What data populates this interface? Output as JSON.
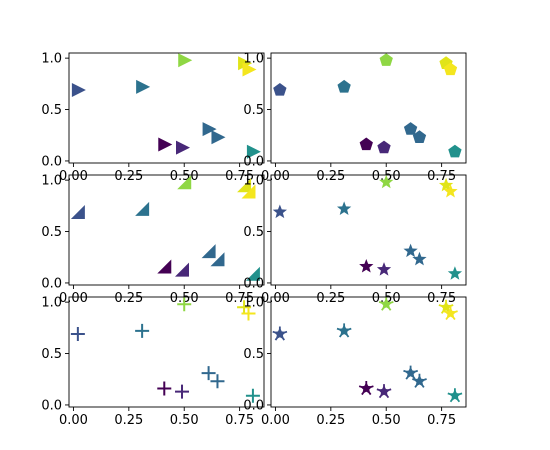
{
  "chart_data": {
    "type": "scatter",
    "layout": "3x2 grid of scatter subplots sharing the same data, differing only in marker style",
    "xlim": [
      -0.02,
      0.86
    ],
    "ylim": [
      -0.02,
      1.05
    ],
    "xticks": [
      0.0,
      0.25,
      0.5,
      0.75
    ],
    "yticks": [
      0.0,
      0.5,
      1.0
    ],
    "xtick_labels": [
      "0.00",
      "0.25",
      "0.50",
      "0.75"
    ],
    "ytick_labels": [
      "0.0",
      "0.5",
      "1.0"
    ],
    "grid": false,
    "colormap": "viridis",
    "points": [
      {
        "x": 0.02,
        "y": 0.69,
        "color": "#3b528b"
      },
      {
        "x": 0.31,
        "y": 0.72,
        "color": "#2c728e"
      },
      {
        "x": 0.5,
        "y": 0.98,
        "color": "#8fd744"
      },
      {
        "x": 0.41,
        "y": 0.16,
        "color": "#440154"
      },
      {
        "x": 0.49,
        "y": 0.13,
        "color": "#482878"
      },
      {
        "x": 0.61,
        "y": 0.31,
        "color": "#31688e"
      },
      {
        "x": 0.65,
        "y": 0.23,
        "color": "#31688e"
      },
      {
        "x": 0.77,
        "y": 0.95,
        "color": "#e1e418"
      },
      {
        "x": 0.79,
        "y": 0.89,
        "color": "#f4e61e"
      },
      {
        "x": 0.81,
        "y": 0.09,
        "color": "#21918c"
      }
    ],
    "subplots": [
      {
        "marker": "triangle-right"
      },
      {
        "marker": "pentagon"
      },
      {
        "marker": "tri-lower-left"
      },
      {
        "marker": "star"
      },
      {
        "marker": "plus"
      },
      {
        "marker": "asterisk-star"
      }
    ]
  }
}
